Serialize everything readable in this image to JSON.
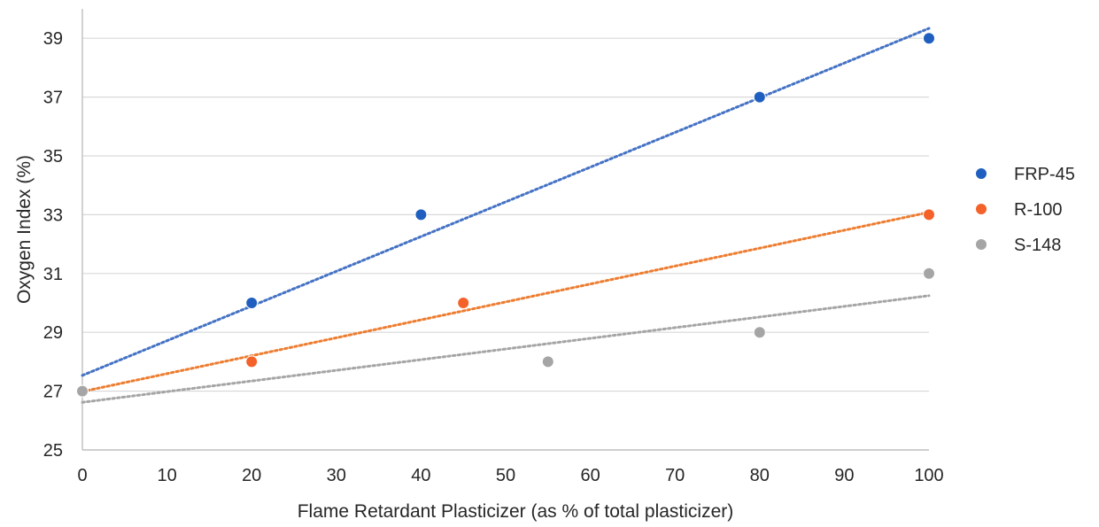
{
  "chart_data": {
    "type": "scatter",
    "title": "",
    "xlabel": "Flame Retardant Plasticizer (as % of total plasticizer)",
    "ylabel": "Oxygen Index (%)",
    "xlim": [
      0,
      100
    ],
    "ylim": [
      25,
      40
    ],
    "x_ticks": [
      0,
      10,
      20,
      30,
      40,
      50,
      60,
      70,
      80,
      90,
      100
    ],
    "y_ticks": [
      25,
      27,
      29,
      31,
      33,
      35,
      37,
      39
    ],
    "x_tick_labels": [
      "0",
      "10",
      "20",
      "30",
      "40",
      "50",
      "60",
      "70",
      "80",
      "90",
      "100"
    ],
    "y_tick_labels": [
      "25",
      "27",
      "29",
      "31",
      "33",
      "35",
      "37",
      "39"
    ],
    "grid": "horizontal",
    "legend_position": "right",
    "trendline": "linear, dotted",
    "series": [
      {
        "name": "FRP-45",
        "color": "#1f5fbf",
        "trend_color": "#4472c4",
        "points": [
          [
            0,
            27
          ],
          [
            20,
            30
          ],
          [
            40,
            33
          ],
          [
            80,
            37
          ],
          [
            100,
            39
          ]
        ]
      },
      {
        "name": "R-100",
        "color": "#f4622a",
        "trend_color": "#ed7d31",
        "points": [
          [
            0,
            27
          ],
          [
            20,
            28
          ],
          [
            45,
            30
          ],
          [
            100,
            33
          ]
        ]
      },
      {
        "name": "S-148",
        "color": "#a5a5a5",
        "trend_color": "#a5a5a5",
        "points": [
          [
            0,
            27
          ],
          [
            55,
            28
          ],
          [
            80,
            29
          ],
          [
            100,
            31
          ]
        ]
      }
    ]
  }
}
